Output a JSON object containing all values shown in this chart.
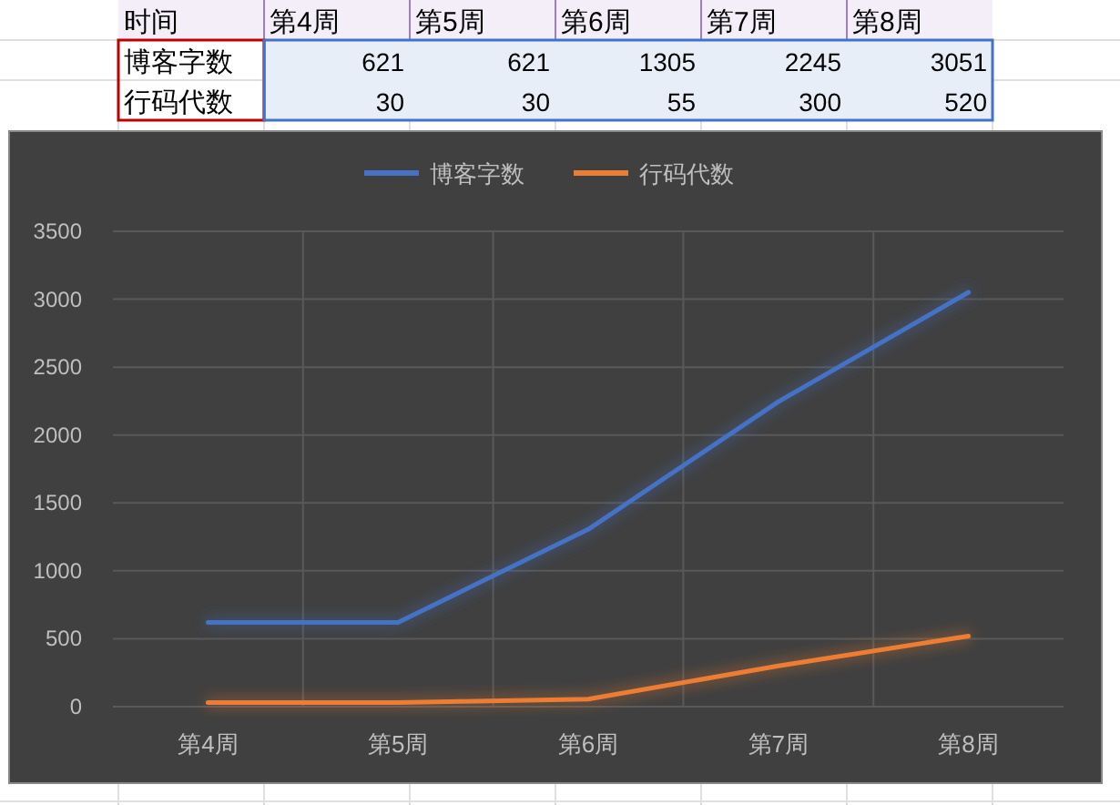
{
  "chart_data": [
    {
      "type": "other",
      "annotations": [
        "时间",
        "第4周",
        "第5周",
        "第6周",
        "第7周",
        "第8周",
        "博客字数",
        "621",
        "621",
        "1305",
        "2245",
        "3051",
        "行码代数",
        "30",
        "30",
        "55",
        "300",
        "520"
      ]
    },
    {
      "type": "line",
      "categories": [
        "第4周",
        "第5周",
        "第6周",
        "第7周",
        "第8周"
      ],
      "series": [
        {
          "name": "博客字数",
          "color": "#4472c4",
          "values": [
            621,
            621,
            1305,
            2245,
            3051
          ]
        },
        {
          "name": "行码代数",
          "color": "#ed7d31",
          "values": [
            30,
            30,
            55,
            300,
            520
          ]
        }
      ],
      "ylim": [
        0,
        3500
      ],
      "yticks": [
        0,
        500,
        1000,
        1500,
        2000,
        2500,
        3000,
        3500
      ],
      "grid": true,
      "legend": "top",
      "line_style": "solid"
    }
  ]
}
